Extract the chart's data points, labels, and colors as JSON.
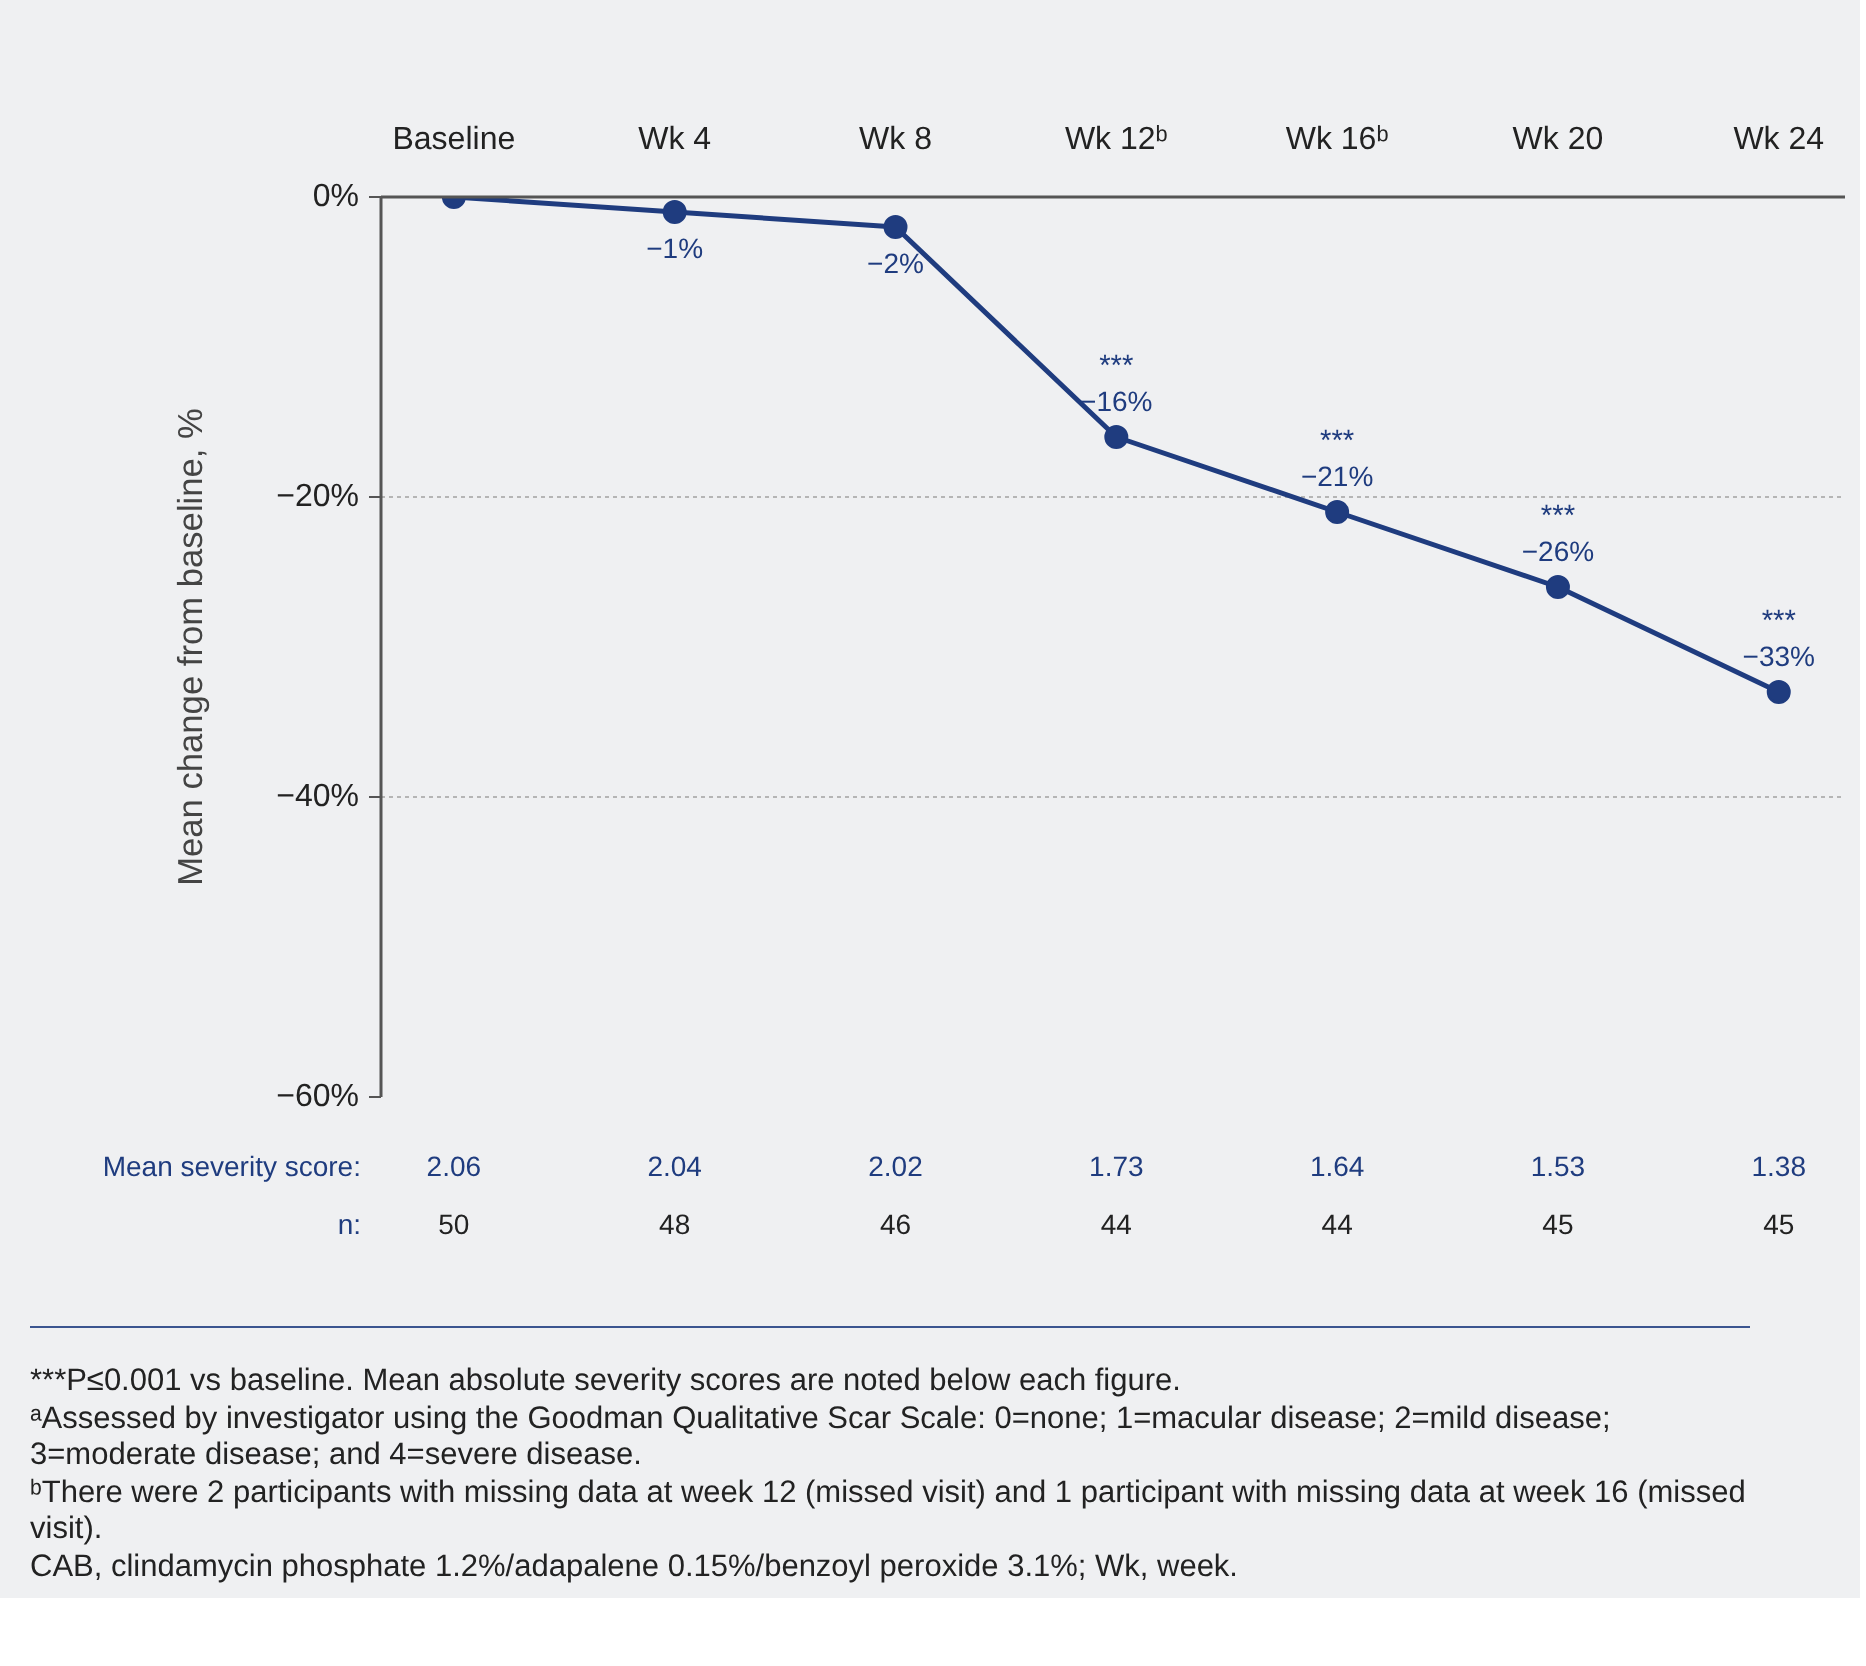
{
  "chart_data": {
    "type": "line",
    "ylabel": "Mean change from baseline, %",
    "categories": [
      "Baseline",
      "Wk 4",
      "Wk 8",
      "Wk 12ᵇ",
      "Wk 16ᵇ",
      "Wk 20",
      "Wk 24"
    ],
    "series": [
      {
        "color": "#1f3c7f",
        "values": [
          0,
          -1,
          -2,
          -16,
          -21,
          -26,
          -33
        ],
        "value_labels": [
          null,
          "−1%",
          "−2%",
          "−16%",
          "−21%",
          "−26%",
          "−33%"
        ]
      }
    ],
    "ylim": [
      -60,
      0
    ],
    "yticks": [
      {
        "value": 0,
        "label": "0%"
      },
      {
        "value": -20,
        "label": "−20%"
      },
      {
        "value": -40,
        "label": "−40%"
      },
      {
        "value": -60,
        "label": "−60%"
      }
    ],
    "grid": "y",
    "marker": "circle",
    "line_style": "solid",
    "annotations": [
      {
        "text": "***",
        "x": "Wk 12ᵇ",
        "y": -16
      },
      {
        "text": "***",
        "x": "Wk 16ᵇ",
        "y": -21
      },
      {
        "text": "***",
        "x": "Wk 20",
        "y": -26
      },
      {
        "text": "***",
        "x": "Wk 24",
        "y": -33
      },
      "Mean severity score:",
      "2.06",
      "2.04",
      "2.02",
      "1.73",
      "1.64",
      "1.53",
      "1.38",
      "n:",
      "50",
      "48",
      "46",
      "44",
      "44",
      "45",
      "45",
      "***P≤0.001 vs baseline. Mean absolute severity scores are noted below each figure.",
      "ᵃAssessed by investigator using the Goodman Qualitative Scar Scale: 0=none; 1=macular disease; 2=mild disease; 3=moderate disease; and 4=severe disease.",
      "ᵇThere were 2 participants with missing data at week 12 (missed visit) and 1 participant with missing data at week 16 (missed visit).",
      "CAB, clindamycin phosphate 1.2%/adapalene 0.15%/benzoyl peroxide 3.1%; Wk, week."
    ]
  }
}
